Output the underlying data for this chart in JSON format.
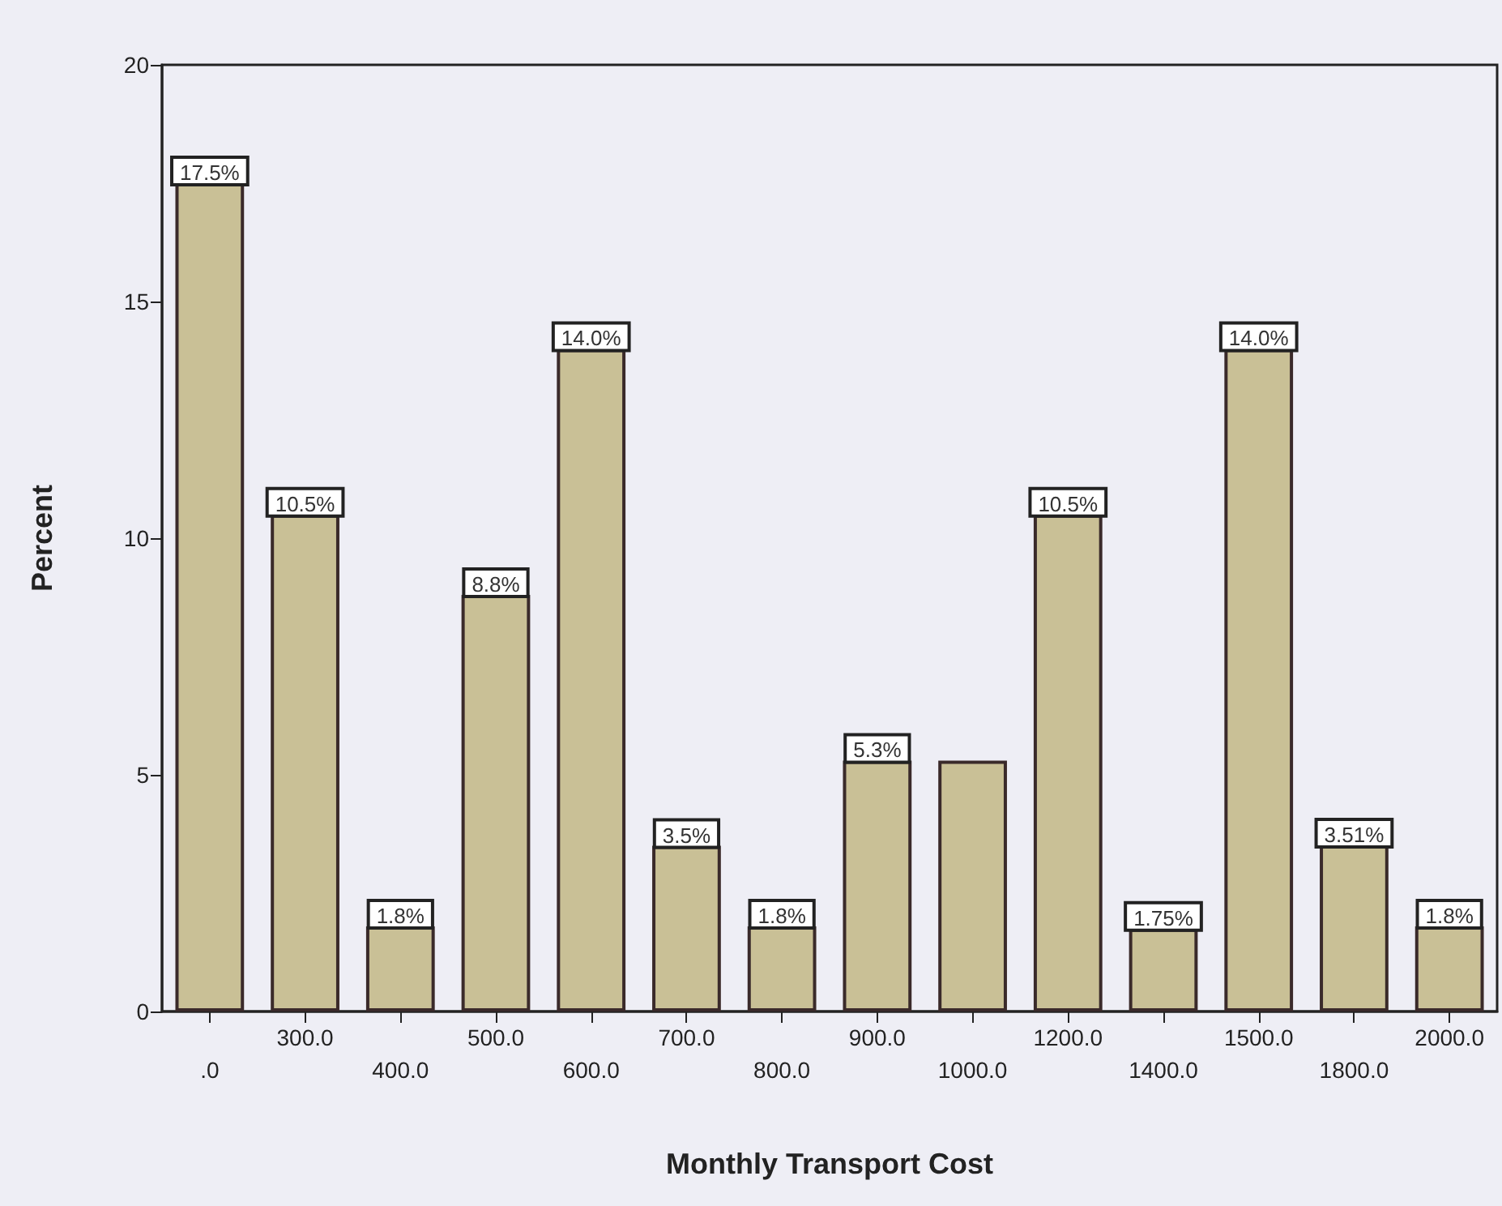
{
  "chart_data": {
    "type": "bar",
    "xlabel": "Monthly Transport Cost",
    "ylabel": "Percent",
    "categories": [
      ".0",
      "300.0",
      "400.0",
      "500.0",
      "600.0",
      "700.0",
      "800.0",
      "900.0",
      "1000.0",
      "1200.0",
      "1400.0",
      "1500.0",
      "1800.0",
      "2000.0"
    ],
    "values": [
      17.5,
      10.5,
      1.8,
      8.8,
      14.0,
      3.5,
      1.8,
      5.3,
      5.3,
      10.5,
      1.75,
      14.0,
      3.51,
      1.8
    ],
    "value_labels": [
      "17.5%",
      "10.5%",
      "1.8%",
      "8.8%",
      "14.0%",
      "3.5%",
      "1.8%",
      "5.3%",
      null,
      "10.5%",
      "1.75%",
      "14.0%",
      "3.51%",
      "1.8%"
    ],
    "color": "#c9c096",
    "ylim": [
      0,
      20
    ],
    "yticks": [
      0,
      5,
      10,
      15,
      20
    ],
    "grid": false
  }
}
